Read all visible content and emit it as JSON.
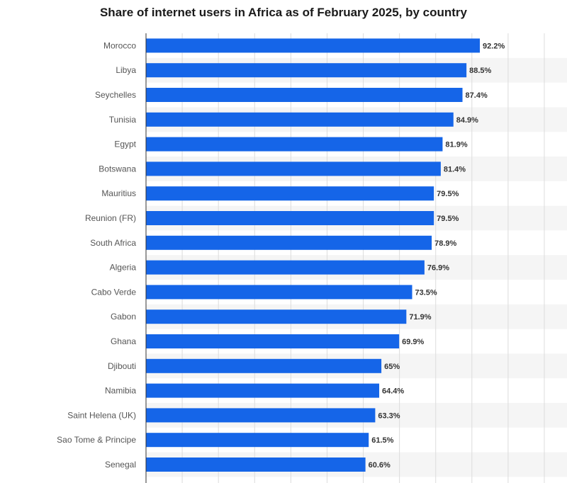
{
  "chart_data": {
    "type": "bar",
    "orientation": "horizontal",
    "title": "Share of internet users in Africa as of February 2025, by country",
    "xlabel": "",
    "ylabel": "",
    "categories": [
      "Morocco",
      "Libya",
      "Seychelles",
      "Tunisia",
      "Egypt",
      "Botswana",
      "Mauritius",
      "Reunion (FR)",
      "South Africa",
      "Algeria",
      "Cabo Verde",
      "Gabon",
      "Ghana",
      "Djibouti",
      "Namibia",
      "Saint Helena (UK)",
      "Sao Tome & Principe",
      "Senegal"
    ],
    "values": [
      92.2,
      88.5,
      87.4,
      84.9,
      81.9,
      81.4,
      79.5,
      79.5,
      78.9,
      76.9,
      73.5,
      71.9,
      69.9,
      65,
      64.4,
      63.3,
      61.5,
      60.6
    ],
    "value_labels": [
      "92.2%",
      "88.5%",
      "87.4%",
      "84.9%",
      "81.9%",
      "81.4%",
      "79.5%",
      "79.5%",
      "78.9%",
      "76.9%",
      "73.5%",
      "71.9%",
      "69.9%",
      "65%",
      "64.4%",
      "63.3%",
      "61.5%",
      "60.6%"
    ],
    "xlim": [
      0,
      110
    ],
    "grid": true,
    "legend": "none",
    "colors": {
      "bar": "#1565e8",
      "stripe": "#f5f5f5",
      "grid": "#dcdcdc",
      "axis": "#333333"
    }
  }
}
